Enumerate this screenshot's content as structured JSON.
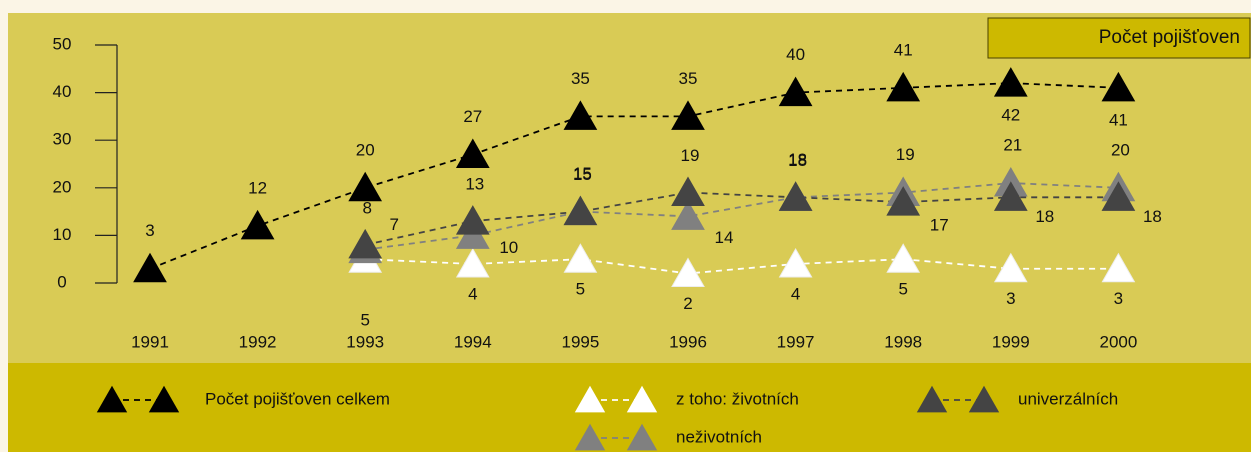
{
  "chart_data": {
    "type": "line",
    "title": "Počet pojišťoven",
    "categories": [
      "1991",
      "1992",
      "1993",
      "1994",
      "1995",
      "1996",
      "1997",
      "1998",
      "1999",
      "2000"
    ],
    "series": [
      {
        "name": "Počet pojišťoven celkem",
        "color": "#000000",
        "values": [
          3,
          12,
          20,
          27,
          35,
          35,
          40,
          41,
          42,
          41
        ]
      },
      {
        "name": "z toho: životních",
        "color": "#ffffff",
        "values": [
          null,
          null,
          5,
          4,
          5,
          2,
          4,
          5,
          3,
          3
        ]
      },
      {
        "name": "univerzálních",
        "color": "#444444",
        "values": [
          null,
          null,
          8,
          13,
          15,
          19,
          18,
          17,
          18,
          18
        ]
      },
      {
        "name": "neživotních",
        "color": "#808080",
        "values": [
          null,
          null,
          7,
          10,
          15,
          14,
          18,
          19,
          21,
          20
        ]
      }
    ],
    "ylim": [
      0,
      50
    ],
    "yticks": [
      0,
      10,
      20,
      30,
      40,
      50
    ]
  }
}
